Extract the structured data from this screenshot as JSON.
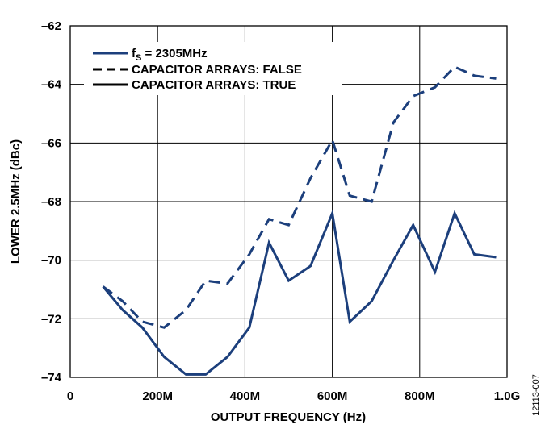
{
  "chart_data": {
    "type": "line",
    "xlabel": "OUTPUT FREQUENCY (Hz)",
    "ylabel": "LOWER 2.5MHz (dBc)",
    "xlim": [
      0,
      1000
    ],
    "ylim": [
      -74,
      -62
    ],
    "x_ticks": [
      0,
      200,
      400,
      600,
      800,
      1000
    ],
    "x_tick_labels": [
      "0",
      "200M",
      "400M",
      "600M",
      "800M",
      "1.0G"
    ],
    "y_ticks": [
      -74,
      -72,
      -70,
      -68,
      -66,
      -64,
      -62
    ],
    "y_tick_labels": [
      "–74",
      "–72",
      "–70",
      "–68",
      "–66",
      "–64",
      "–62"
    ],
    "grid": true,
    "legend": {
      "placement": "top-left",
      "title_main": "f",
      "title_sub": "S",
      "title_rest": " = 2305MHz",
      "entries": [
        {
          "label": "CAPACITOR ARRAYS: FALSE",
          "style": "dashed"
        },
        {
          "label": "CAPACITOR ARRAYS: TRUE",
          "style": "solid"
        }
      ]
    },
    "series": [
      {
        "name": "CAPACITOR ARRAYS: FALSE",
        "style": "dashed",
        "color": "#1c3f7c",
        "x": [
          75,
          120,
          165,
          215,
          265,
          310,
          360,
          410,
          455,
          500,
          550,
          600,
          640,
          690,
          740,
          785,
          835,
          880,
          925,
          975
        ],
        "y": [
          -70.9,
          -71.4,
          -72.1,
          -72.3,
          -71.7,
          -70.7,
          -70.8,
          -69.8,
          -68.6,
          -68.8,
          -67.2,
          -65.9,
          -67.8,
          -68.0,
          -65.3,
          -64.4,
          -64.1,
          -63.4,
          -63.7,
          -63.8
        ]
      },
      {
        "name": "CAPACITOR ARRAYS: TRUE",
        "style": "solid",
        "color": "#1c3f7c",
        "x": [
          75,
          120,
          165,
          215,
          265,
          310,
          360,
          410,
          455,
          500,
          550,
          600,
          640,
          690,
          740,
          785,
          835,
          880,
          925,
          975
        ],
        "y": [
          -70.9,
          -71.7,
          -72.3,
          -73.3,
          -73.9,
          -73.9,
          -73.3,
          -72.3,
          -69.4,
          -70.7,
          -70.2,
          -68.4,
          -72.1,
          -71.4,
          -70.0,
          -68.8,
          -70.4,
          -68.4,
          -69.8,
          -69.9
        ]
      }
    ]
  },
  "figure_id": "12113-007",
  "colors": {
    "series": "#1c3f7c",
    "grid": "#000000"
  }
}
